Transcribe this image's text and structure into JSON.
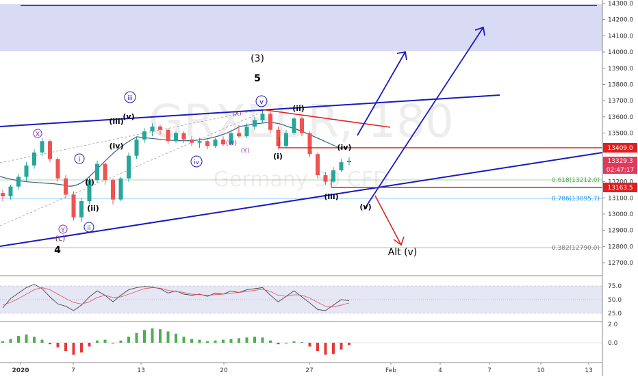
{
  "chart_data": {
    "type": "candlestick",
    "watermark": {
      "symbol": "GRXEUR, 180",
      "name": "Germany 30 CFD"
    },
    "price_axis": {
      "ticks": [
        "14300.0",
        "14200.0",
        "14100.0",
        "14000.0",
        "13900.0",
        "13800.0",
        "13700.0",
        "13600.0",
        "13500.0",
        "13409.0",
        "13329.3",
        "02:47:17",
        "13200.0",
        "13163.5",
        "13100.0",
        "13000.0",
        "12900.0",
        "12800.0",
        "12700.0"
      ],
      "ylim": [
        12630,
        14320
      ]
    },
    "time_axis": {
      "ticks": [
        "2020",
        "7",
        "13",
        "20",
        "27",
        "Feb",
        "4",
        "7",
        "10",
        "13"
      ]
    },
    "price_labels": {
      "resistance": "13409.0",
      "last": "13329.3",
      "countdown": "02:47:17",
      "support": "13163.5"
    },
    "fib_levels": [
      {
        "label": "0.618(13212.0)",
        "value": 13212,
        "color": "#4caf50"
      },
      {
        "label": "0.786(13095.7)",
        "value": 13095.7,
        "color": "#2196f3"
      },
      {
        "label": "0.382(12790.0)",
        "value": 12790,
        "color": "#787878"
      }
    ],
    "wave_labels": {
      "big_3": "(3)",
      "big_5": "5",
      "big_4": "4",
      "c": "(c)",
      "x_circ": "X",
      "y_circ": "Y",
      "i_circ": "i",
      "ii_circ": "ii",
      "iii_circ": "iii",
      "iv_circ": "iv",
      "v_circ": "v",
      "i": "(i)",
      "ii": "(ii)",
      "iii": "(iii)",
      "iv": "(iv)",
      "v": "(v)",
      "x_small": "(X)",
      "w_small": "(W)",
      "y_small": "(Y)",
      "alt_v": "Alt (v)"
    },
    "price_series": [
      {
        "t": 0,
        "o": 13130,
        "h": 13150,
        "l": 13080,
        "c": 13110
      },
      {
        "t": 1,
        "o": 13110,
        "h": 13180,
        "l": 13090,
        "c": 13170
      },
      {
        "t": 2,
        "o": 13170,
        "h": 13250,
        "l": 13150,
        "c": 13230
      },
      {
        "t": 3,
        "o": 13230,
        "h": 13320,
        "l": 13200,
        "c": 13300
      },
      {
        "t": 4,
        "o": 13300,
        "h": 13400,
        "l": 13280,
        "c": 13380
      },
      {
        "t": 5,
        "o": 13380,
        "h": 13470,
        "l": 13360,
        "c": 13450
      },
      {
        "t": 6,
        "o": 13450,
        "h": 13460,
        "l": 13320,
        "c": 13340
      },
      {
        "t": 7,
        "o": 13340,
        "h": 13350,
        "l": 13200,
        "c": 13220
      },
      {
        "t": 8,
        "o": 13220,
        "h": 13240,
        "l": 13100,
        "c": 13120
      },
      {
        "t": 9,
        "o": 13120,
        "h": 13140,
        "l": 12960,
        "c": 12980
      },
      {
        "t": 10,
        "o": 12980,
        "h": 13100,
        "l": 12950,
        "c": 13080
      },
      {
        "t": 11,
        "o": 13080,
        "h": 13230,
        "l": 13060,
        "c": 13210
      },
      {
        "t": 12,
        "o": 13210,
        "h": 13330,
        "l": 13190,
        "c": 13310
      },
      {
        "t": 13,
        "o": 13310,
        "h": 13320,
        "l": 13180,
        "c": 13210
      },
      {
        "t": 14,
        "o": 13210,
        "h": 13220,
        "l": 13060,
        "c": 13090
      },
      {
        "t": 15,
        "o": 13090,
        "h": 13230,
        "l": 13080,
        "c": 13220
      },
      {
        "t": 16,
        "o": 13220,
        "h": 13380,
        "l": 13200,
        "c": 13360
      },
      {
        "t": 17,
        "o": 13360,
        "h": 13480,
        "l": 13340,
        "c": 13460
      },
      {
        "t": 18,
        "o": 13460,
        "h": 13530,
        "l": 13440,
        "c": 13510
      },
      {
        "t": 19,
        "o": 13510,
        "h": 13560,
        "l": 13480,
        "c": 13540
      },
      {
        "t": 20,
        "o": 13540,
        "h": 13550,
        "l": 13490,
        "c": 13520
      },
      {
        "t": 21,
        "o": 13520,
        "h": 13530,
        "l": 13430,
        "c": 13450
      },
      {
        "t": 22,
        "o": 13450,
        "h": 13510,
        "l": 13440,
        "c": 13500
      },
      {
        "t": 23,
        "o": 13500,
        "h": 13510,
        "l": 13440,
        "c": 13460
      },
      {
        "t": 24,
        "o": 13460,
        "h": 13480,
        "l": 13420,
        "c": 13440
      },
      {
        "t": 25,
        "o": 13440,
        "h": 13470,
        "l": 13410,
        "c": 13450
      },
      {
        "t": 26,
        "o": 13450,
        "h": 13460,
        "l": 13400,
        "c": 13420
      },
      {
        "t": 27,
        "o": 13420,
        "h": 13470,
        "l": 13410,
        "c": 13460
      },
      {
        "t": 28,
        "o": 13460,
        "h": 13480,
        "l": 13420,
        "c": 13430
      },
      {
        "t": 29,
        "o": 13430,
        "h": 13520,
        "l": 13420,
        "c": 13500
      },
      {
        "t": 30,
        "o": 13500,
        "h": 13550,
        "l": 13470,
        "c": 13480
      },
      {
        "t": 31,
        "o": 13480,
        "h": 13560,
        "l": 13470,
        "c": 13540
      },
      {
        "t": 32,
        "o": 13540,
        "h": 13600,
        "l": 13520,
        "c": 13580
      },
      {
        "t": 33,
        "o": 13580,
        "h": 13640,
        "l": 13560,
        "c": 13620
      },
      {
        "t": 34,
        "o": 13620,
        "h": 13630,
        "l": 13500,
        "c": 13520
      },
      {
        "t": 35,
        "o": 13520,
        "h": 13540,
        "l": 13400,
        "c": 13420
      },
      {
        "t": 36,
        "o": 13420,
        "h": 13520,
        "l": 13410,
        "c": 13500
      },
      {
        "t": 37,
        "o": 13500,
        "h": 13600,
        "l": 13490,
        "c": 13590
      },
      {
        "t": 38,
        "o": 13590,
        "h": 13600,
        "l": 13480,
        "c": 13500
      },
      {
        "t": 39,
        "o": 13500,
        "h": 13510,
        "l": 13350,
        "c": 13370
      },
      {
        "t": 40,
        "o": 13370,
        "h": 13380,
        "l": 13220,
        "c": 13240
      },
      {
        "t": 41,
        "o": 13240,
        "h": 13260,
        "l": 13180,
        "c": 13200
      },
      {
        "t": 42,
        "o": 13200,
        "h": 13290,
        "l": 13190,
        "c": 13270
      },
      {
        "t": 43,
        "o": 13270,
        "h": 13340,
        "l": 13260,
        "c": 13320
      },
      {
        "t": 44,
        "o": 13320,
        "h": 13350,
        "l": 13300,
        "c": 13329
      }
    ],
    "rsi": {
      "ticks": [
        "75.0",
        "50.0",
        "25.0"
      ],
      "values": [
        35,
        52,
        62,
        72,
        78,
        70,
        55,
        42,
        38,
        30,
        40,
        55,
        66,
        58,
        46,
        58,
        68,
        72,
        74,
        73,
        70,
        62,
        66,
        60,
        58,
        60,
        56,
        62,
        60,
        66,
        63,
        68,
        70,
        72,
        58,
        46,
        56,
        66,
        55,
        44,
        32,
        30,
        40,
        50,
        48
      ],
      "signal": [
        40,
        45,
        52,
        60,
        68,
        72,
        68,
        60,
        52,
        45,
        42,
        46,
        54,
        58,
        54,
        55,
        60,
        65,
        70,
        72,
        71,
        67,
        65,
        63,
        60,
        59,
        58,
        59,
        60,
        62,
        63,
        65,
        67,
        69,
        65,
        58,
        56,
        59,
        58,
        53,
        45,
        38,
        37,
        40,
        44
      ]
    },
    "macd": {
      "ticks": [
        "2.0",
        "0.0"
      ],
      "values": [
        4,
        10,
        18,
        22,
        16,
        8,
        -4,
        -12,
        -22,
        -32,
        -26,
        -10,
        6,
        8,
        -2,
        6,
        16,
        26,
        34,
        38,
        36,
        30,
        24,
        16,
        10,
        8,
        4,
        6,
        8,
        10,
        12,
        14,
        16,
        14,
        6,
        -4,
        -2,
        4,
        2,
        -10,
        -22,
        -32,
        -30,
        -18,
        -6
      ]
    }
  }
}
